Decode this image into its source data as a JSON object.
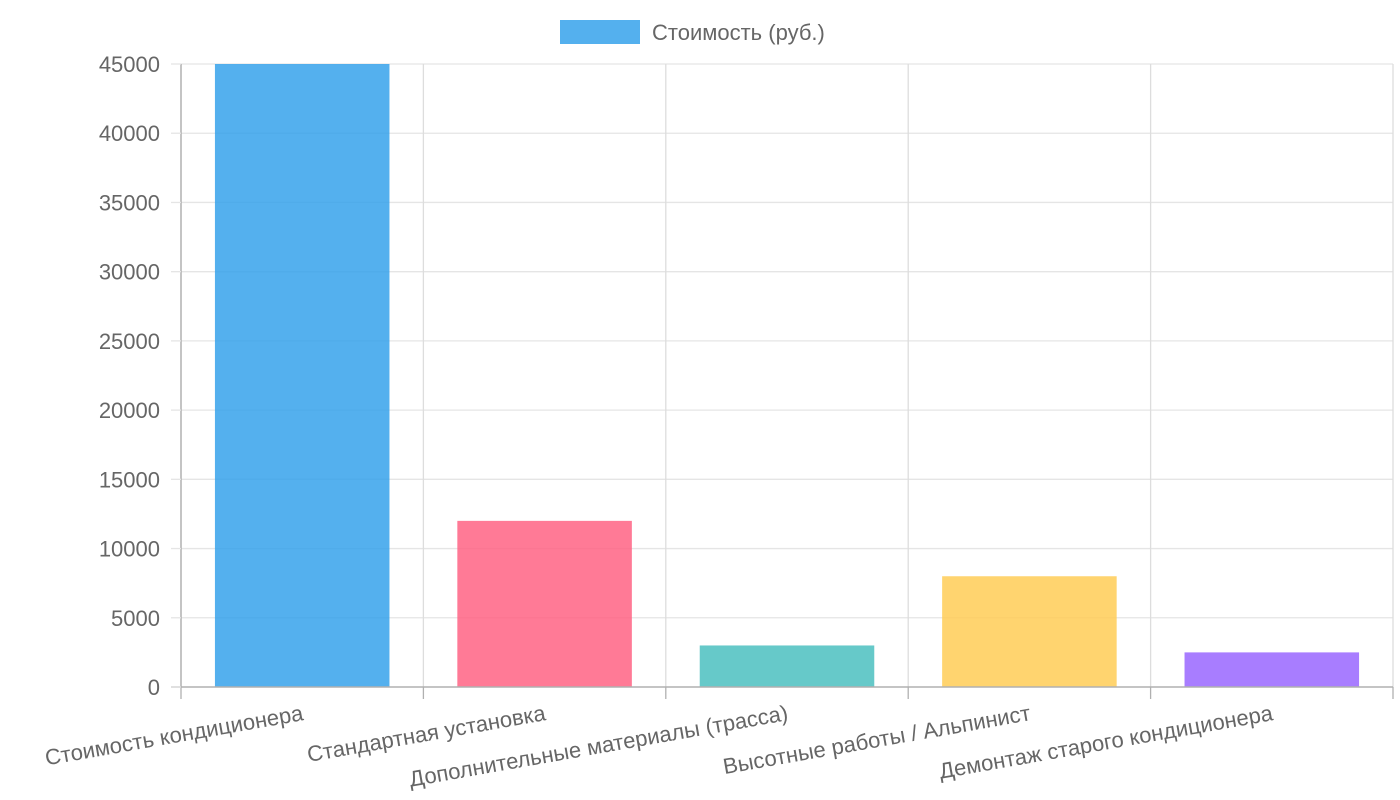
{
  "chart_data": {
    "type": "bar",
    "categories": [
      "Стоимость кондиционера",
      "Стандартная установка",
      "Дополнительные материалы (трасса)",
      "Высотные работы / Альпинист",
      "Демонтаж старого кондиционера"
    ],
    "series": [
      {
        "name": "Стоимость (руб.)",
        "values": [
          45000,
          12000,
          3000,
          8000,
          2500
        ]
      }
    ],
    "bar_colors": [
      "#36a2eb",
      "#ff6384",
      "#4bc0c0",
      "#ffcd56",
      "#9966ff"
    ],
    "ylim": [
      0,
      45000
    ],
    "yticks": [
      0,
      5000,
      10000,
      15000,
      20000,
      25000,
      30000,
      35000,
      40000,
      45000
    ],
    "grid": true,
    "legend_position": "top",
    "colors": {
      "grid": "#e5e5e5",
      "axis": "#b0b0b0",
      "text": "#666666"
    }
  }
}
